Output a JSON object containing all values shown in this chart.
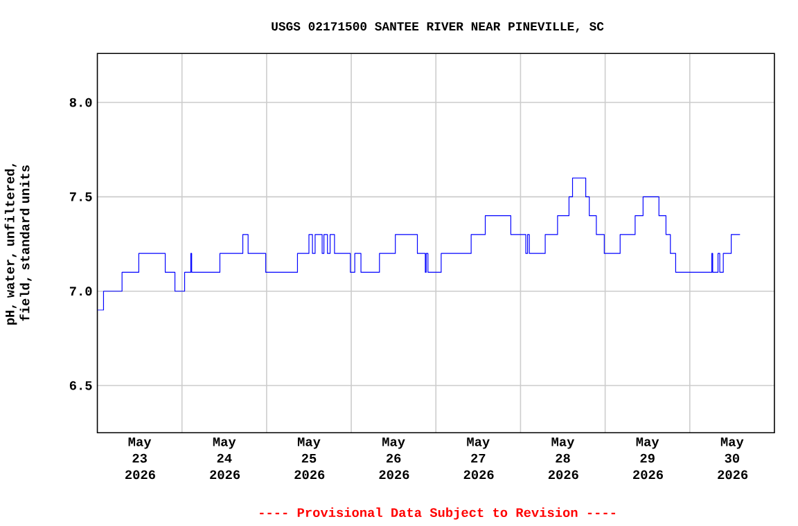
{
  "chart_data": {
    "type": "step",
    "title": "USGS 02171500 SANTEE RIVER NEAR PINEVILLE, SC",
    "ylabel": "pH, water, unfiltered, field, standard units",
    "annotations": [
      "---- Provisional Data Subject to Revision ----"
    ],
    "xlim": [
      "2026-05-23T00:00",
      "2026-05-31T00:00"
    ],
    "xticks": [
      {
        "value": "2026-05-23T12:00",
        "label": "May 23 2026"
      },
      {
        "value": "2026-05-24T12:00",
        "label": "May 24 2026"
      },
      {
        "value": "2026-05-25T12:00",
        "label": "May 25 2026"
      },
      {
        "value": "2026-05-26T12:00",
        "label": "May 26 2026"
      },
      {
        "value": "2026-05-27T12:00",
        "label": "May 27 2026"
      },
      {
        "value": "2026-05-28T12:00",
        "label": "May 28 2026"
      },
      {
        "value": "2026-05-29T12:00",
        "label": "May 29 2026"
      },
      {
        "value": "2026-05-30T12:00",
        "label": "May 30 2026"
      },
      {
        "value": "2026-05-24T00:00",
        "label": null
      },
      {
        "value": "2026-05-25T00:00",
        "label": null
      },
      {
        "value": "2026-05-26T00:00",
        "label": null
      },
      {
        "value": "2026-05-27T00:00",
        "label": null
      },
      {
        "value": "2026-05-28T00:00",
        "label": null
      },
      {
        "value": "2026-05-29T00:00",
        "label": null
      },
      {
        "value": "2026-05-30T00:00",
        "label": null
      }
    ],
    "ylim": [
      6.25,
      8.26
    ],
    "yticks": [
      {
        "value": 6.5,
        "label": "6.5"
      },
      {
        "value": 7.0,
        "label": "7.0"
      },
      {
        "value": 7.5,
        "label": "7.5"
      },
      {
        "value": 8.0,
        "label": "8.0"
      }
    ],
    "grid": true,
    "marker": "none",
    "line_style": "solid",
    "series": [
      {
        "color": "#0000ff",
        "x": [
          "2026-05-23T00:00",
          "2026-05-23T01:45",
          "2026-05-23T07:00",
          "2026-05-23T11:45",
          "2026-05-23T19:15",
          "2026-05-23T22:00",
          "2026-05-24T00:45",
          "2026-05-24T02:30",
          "2026-05-24T02:45",
          "2026-05-24T10:45",
          "2026-05-24T17:15",
          "2026-05-24T18:45",
          "2026-05-24T23:45",
          "2026-05-25T08:45",
          "2026-05-25T12:00",
          "2026-05-25T13:00",
          "2026-05-25T13:45",
          "2026-05-25T15:45",
          "2026-05-25T16:15",
          "2026-05-25T17:15",
          "2026-05-25T18:00",
          "2026-05-25T19:15",
          "2026-05-25T23:45",
          "2026-05-26T01:00",
          "2026-05-26T02:45",
          "2026-05-26T08:00",
          "2026-05-26T12:30",
          "2026-05-26T18:45",
          "2026-05-26T21:00",
          "2026-05-26T21:15",
          "2026-05-26T21:45",
          "2026-05-27T01:30",
          "2026-05-27T10:00",
          "2026-05-27T14:00",
          "2026-05-27T21:15",
          "2026-05-28T01:30",
          "2026-05-28T02:00",
          "2026-05-28T02:30",
          "2026-05-28T07:00",
          "2026-05-28T10:30",
          "2026-05-28T13:45",
          "2026-05-28T14:45",
          "2026-05-28T18:30",
          "2026-05-28T19:30",
          "2026-05-28T21:30",
          "2026-05-28T23:45",
          "2026-05-29T04:15",
          "2026-05-29T08:30",
          "2026-05-29T10:45",
          "2026-05-29T15:15",
          "2026-05-29T17:15",
          "2026-05-29T18:30",
          "2026-05-29T20:00",
          "2026-05-30T06:15",
          "2026-05-30T06:30",
          "2026-05-30T08:00",
          "2026-05-30T08:30",
          "2026-05-30T09:30",
          "2026-05-30T11:45",
          "2026-05-30T14:15"
        ],
        "values": [
          6.9,
          7.0,
          7.1,
          7.2,
          7.1,
          7.0,
          7.1,
          7.2,
          7.1,
          7.2,
          7.3,
          7.2,
          7.1,
          7.2,
          7.3,
          7.2,
          7.3,
          7.2,
          7.3,
          7.2,
          7.3,
          7.2,
          7.1,
          7.2,
          7.1,
          7.2,
          7.3,
          7.2,
          7.1,
          7.2,
          7.1,
          7.2,
          7.3,
          7.4,
          7.3,
          7.2,
          7.3,
          7.2,
          7.3,
          7.4,
          7.5,
          7.6,
          7.5,
          7.4,
          7.3,
          7.2,
          7.3,
          7.4,
          7.5,
          7.4,
          7.3,
          7.2,
          7.1,
          7.2,
          7.1,
          7.2,
          7.1,
          7.2,
          7.3,
          7.3
        ]
      }
    ]
  }
}
